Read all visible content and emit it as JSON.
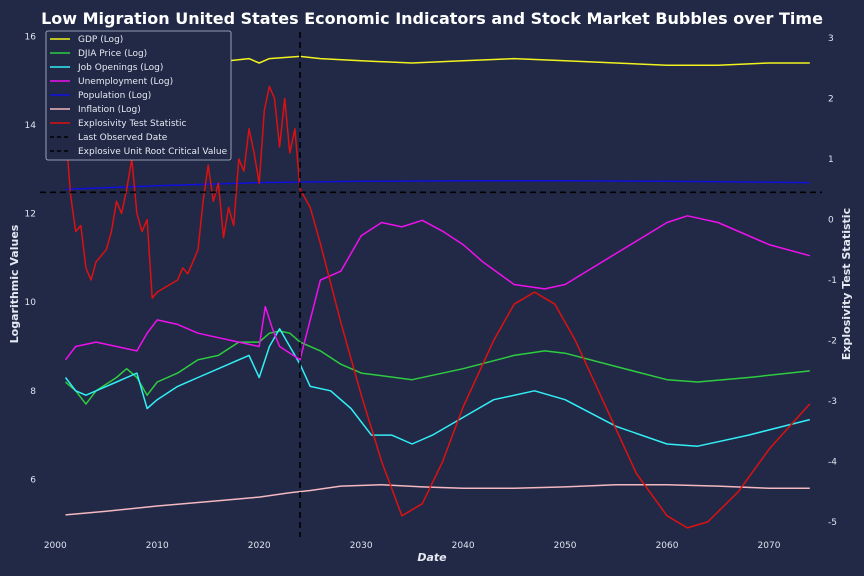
{
  "chart_data": {
    "type": "line",
    "title": "Low Migration United States Economic Indicators and Stock Market Bubbles over Time",
    "xlabel": "Date",
    "ylabel_left": "Logarithmic Values",
    "ylabel_right": "Explosivity Test Statistic",
    "xlim": [
      1998.5,
      2075.2
    ],
    "ylim_left": [
      4.7,
      16.1
    ],
    "ylim_right": [
      -5.25,
      3.1
    ],
    "x_ticks": [
      2000,
      2010,
      2020,
      2030,
      2040,
      2050,
      2060,
      2070
    ],
    "y_ticks_left": [
      6,
      8,
      10,
      12,
      14,
      16
    ],
    "y_ticks_right": [
      -5,
      -4,
      -3,
      -2,
      -1,
      0,
      1,
      2,
      3
    ],
    "grid": false,
    "legend_position": "top-left",
    "last_observed_date": 2024.0,
    "critical_value": 0.45,
    "series": [
      {
        "name": "GDP (Log)",
        "color": "#f2f21e",
        "axis": "left",
        "points": [
          [
            2001,
            15.1
          ],
          [
            2005,
            15.2
          ],
          [
            2010,
            15.3
          ],
          [
            2015,
            15.4
          ],
          [
            2019,
            15.5
          ],
          [
            2020,
            15.4
          ],
          [
            2021,
            15.5
          ],
          [
            2024,
            15.55
          ],
          [
            2026,
            15.5
          ],
          [
            2030,
            15.45
          ],
          [
            2035,
            15.4
          ],
          [
            2040,
            15.45
          ],
          [
            2045,
            15.5
          ],
          [
            2050,
            15.45
          ],
          [
            2055,
            15.4
          ],
          [
            2060,
            15.35
          ],
          [
            2065,
            15.35
          ],
          [
            2070,
            15.4
          ],
          [
            2074,
            15.4
          ]
        ]
      },
      {
        "name": "DJIA Price (Log)",
        "color": "#2ecc40",
        "axis": "left",
        "points": [
          [
            2001,
            8.2
          ],
          [
            2002,
            8.0
          ],
          [
            2003,
            7.7
          ],
          [
            2004,
            8.0
          ],
          [
            2006,
            8.3
          ],
          [
            2007,
            8.5
          ],
          [
            2008,
            8.3
          ],
          [
            2009,
            7.9
          ],
          [
            2010,
            8.2
          ],
          [
            2012,
            8.4
          ],
          [
            2014,
            8.7
          ],
          [
            2016,
            8.8
          ],
          [
            2018,
            9.1
          ],
          [
            2020,
            9.1
          ],
          [
            2021,
            9.3
          ],
          [
            2022,
            9.35
          ],
          [
            2023,
            9.3
          ],
          [
            2024,
            9.1
          ],
          [
            2026,
            8.9
          ],
          [
            2028,
            8.6
          ],
          [
            2030,
            8.4
          ],
          [
            2035,
            8.25
          ],
          [
            2040,
            8.5
          ],
          [
            2045,
            8.8
          ],
          [
            2048,
            8.9
          ],
          [
            2050,
            8.85
          ],
          [
            2055,
            8.55
          ],
          [
            2060,
            8.25
          ],
          [
            2063,
            8.2
          ],
          [
            2068,
            8.3
          ],
          [
            2074,
            8.45
          ]
        ]
      },
      {
        "name": "Job Openings (Log)",
        "color": "#33eef5",
        "axis": "left",
        "points": [
          [
            2001,
            8.3
          ],
          [
            2002,
            8.0
          ],
          [
            2003,
            7.9
          ],
          [
            2004,
            8.0
          ],
          [
            2006,
            8.2
          ],
          [
            2008,
            8.4
          ],
          [
            2009,
            7.6
          ],
          [
            2010,
            7.8
          ],
          [
            2012,
            8.1
          ],
          [
            2014,
            8.3
          ],
          [
            2016,
            8.5
          ],
          [
            2018,
            8.7
          ],
          [
            2019,
            8.8
          ],
          [
            2020,
            8.3
          ],
          [
            2021,
            9.0
          ],
          [
            2022,
            9.4
          ],
          [
            2023,
            9.0
          ],
          [
            2024,
            8.6
          ],
          [
            2025,
            8.1
          ],
          [
            2027,
            8.0
          ],
          [
            2029,
            7.6
          ],
          [
            2031,
            7.0
          ],
          [
            2033,
            7.0
          ],
          [
            2035,
            6.8
          ],
          [
            2037,
            7.0
          ],
          [
            2040,
            7.4
          ],
          [
            2043,
            7.8
          ],
          [
            2047,
            8.0
          ],
          [
            2050,
            7.8
          ],
          [
            2055,
            7.2
          ],
          [
            2060,
            6.8
          ],
          [
            2063,
            6.75
          ],
          [
            2068,
            7.0
          ],
          [
            2074,
            7.35
          ]
        ]
      },
      {
        "name": "Unemployment (Log)",
        "color": "#ee11ee",
        "axis": "left",
        "points": [
          [
            2001,
            8.7
          ],
          [
            2002,
            9.0
          ],
          [
            2004,
            9.1
          ],
          [
            2006,
            9.0
          ],
          [
            2008,
            8.9
          ],
          [
            2009,
            9.3
          ],
          [
            2010,
            9.6
          ],
          [
            2012,
            9.5
          ],
          [
            2014,
            9.3
          ],
          [
            2016,
            9.2
          ],
          [
            2018,
            9.1
          ],
          [
            2020,
            9.0
          ],
          [
            2020.6,
            9.9
          ],
          [
            2021.3,
            9.4
          ],
          [
            2022,
            9.0
          ],
          [
            2024,
            8.7
          ],
          [
            2025,
            9.6
          ],
          [
            2026,
            10.5
          ],
          [
            2028,
            10.7
          ],
          [
            2030,
            11.5
          ],
          [
            2032,
            11.8
          ],
          [
            2034,
            11.7
          ],
          [
            2036,
            11.85
          ],
          [
            2038,
            11.6
          ],
          [
            2040,
            11.3
          ],
          [
            2042,
            10.9
          ],
          [
            2045,
            10.4
          ],
          [
            2048,
            10.3
          ],
          [
            2050,
            10.4
          ],
          [
            2055,
            11.1
          ],
          [
            2060,
            11.8
          ],
          [
            2062,
            11.95
          ],
          [
            2065,
            11.8
          ],
          [
            2070,
            11.3
          ],
          [
            2074,
            11.05
          ]
        ]
      },
      {
        "name": "Population (Log)",
        "color": "#1010dd",
        "axis": "left",
        "points": [
          [
            2001,
            12.55
          ],
          [
            2010,
            12.63
          ],
          [
            2020,
            12.7
          ],
          [
            2030,
            12.73
          ],
          [
            2040,
            12.74
          ],
          [
            2050,
            12.74
          ],
          [
            2060,
            12.73
          ],
          [
            2074,
            12.7
          ]
        ]
      },
      {
        "name": "Inflation (Log)",
        "color": "#f4b8c0",
        "axis": "left",
        "points": [
          [
            2001,
            5.2
          ],
          [
            2005,
            5.28
          ],
          [
            2010,
            5.4
          ],
          [
            2015,
            5.5
          ],
          [
            2020,
            5.6
          ],
          [
            2023,
            5.7
          ],
          [
            2025,
            5.75
          ],
          [
            2028,
            5.85
          ],
          [
            2032,
            5.88
          ],
          [
            2036,
            5.83
          ],
          [
            2040,
            5.8
          ],
          [
            2045,
            5.8
          ],
          [
            2050,
            5.83
          ],
          [
            2055,
            5.88
          ],
          [
            2060,
            5.88
          ],
          [
            2065,
            5.85
          ],
          [
            2070,
            5.8
          ],
          [
            2074,
            5.8
          ]
        ]
      },
      {
        "name": "Explosivity Test Statistic",
        "color": "#dd1111",
        "axis": "right",
        "points": [
          [
            2001,
            1.5
          ],
          [
            2001.5,
            0.4
          ],
          [
            2002,
            -0.2
          ],
          [
            2002.5,
            -0.1
          ],
          [
            2003,
            -0.8
          ],
          [
            2003.5,
            -1.0
          ],
          [
            2004,
            -0.7
          ],
          [
            2005,
            -0.5
          ],
          [
            2005.5,
            -0.2
          ],
          [
            2006,
            0.3
          ],
          [
            2006.5,
            0.1
          ],
          [
            2007,
            0.5
          ],
          [
            2007.5,
            1.0
          ],
          [
            2008,
            0.1
          ],
          [
            2008.5,
            -0.2
          ],
          [
            2009,
            0.0
          ],
          [
            2009.5,
            -1.3
          ],
          [
            2010,
            -1.2
          ],
          [
            2011,
            -1.1
          ],
          [
            2012,
            -1.0
          ],
          [
            2012.5,
            -0.8
          ],
          [
            2013,
            -0.9
          ],
          [
            2013.5,
            -0.7
          ],
          [
            2014,
            -0.5
          ],
          [
            2014.5,
            0.3
          ],
          [
            2015,
            0.9
          ],
          [
            2015.5,
            0.3
          ],
          [
            2016,
            0.6
          ],
          [
            2016.5,
            -0.3
          ],
          [
            2017,
            0.2
          ],
          [
            2017.5,
            -0.1
          ],
          [
            2018,
            1.0
          ],
          [
            2018.5,
            0.8
          ],
          [
            2019,
            1.5
          ],
          [
            2019.5,
            1.1
          ],
          [
            2020,
            0.6
          ],
          [
            2020.5,
            1.8
          ],
          [
            2021,
            2.2
          ],
          [
            2021.5,
            2.0
          ],
          [
            2022,
            1.2
          ],
          [
            2022.5,
            2.0
          ],
          [
            2023,
            1.1
          ],
          [
            2023.5,
            1.5
          ],
          [
            2024,
            0.5
          ],
          [
            2025,
            0.2
          ],
          [
            2026,
            -0.4
          ],
          [
            2028,
            -1.7
          ],
          [
            2030,
            -2.9
          ],
          [
            2032,
            -4.0
          ],
          [
            2034,
            -4.9
          ],
          [
            2036,
            -4.7
          ],
          [
            2038,
            -4.0
          ],
          [
            2040,
            -3.1
          ],
          [
            2043,
            -2.0
          ],
          [
            2045,
            -1.4
          ],
          [
            2047,
            -1.2
          ],
          [
            2049,
            -1.4
          ],
          [
            2051,
            -2.0
          ],
          [
            2054,
            -3.1
          ],
          [
            2057,
            -4.2
          ],
          [
            2060,
            -4.9
          ],
          [
            2062,
            -5.1
          ],
          [
            2064,
            -5.0
          ],
          [
            2067,
            -4.5
          ],
          [
            2070,
            -3.8
          ],
          [
            2074,
            -3.05
          ]
        ]
      }
    ],
    "legend": [
      {
        "label": "GDP (Log)",
        "color": "#f2f21e",
        "dashed": false
      },
      {
        "label": "DJIA Price (Log)",
        "color": "#2ecc40",
        "dashed": false
      },
      {
        "label": "Job Openings (Log)",
        "color": "#33eef5",
        "dashed": false
      },
      {
        "label": "Unemployment (Log)",
        "color": "#ee11ee",
        "dashed": false
      },
      {
        "label": "Population (Log)",
        "color": "#1010dd",
        "dashed": false
      },
      {
        "label": "Inflation (Log)",
        "color": "#f4b8c0",
        "dashed": false
      },
      {
        "label": "Explosivity Test Statistic",
        "color": "#dd1111",
        "dashed": false
      },
      {
        "label": "Last Observed Date",
        "color": "#000000",
        "dashed": true
      },
      {
        "label": "Explosive Unit Root Critical Value",
        "color": "#000000",
        "dashed": true
      }
    ]
  }
}
